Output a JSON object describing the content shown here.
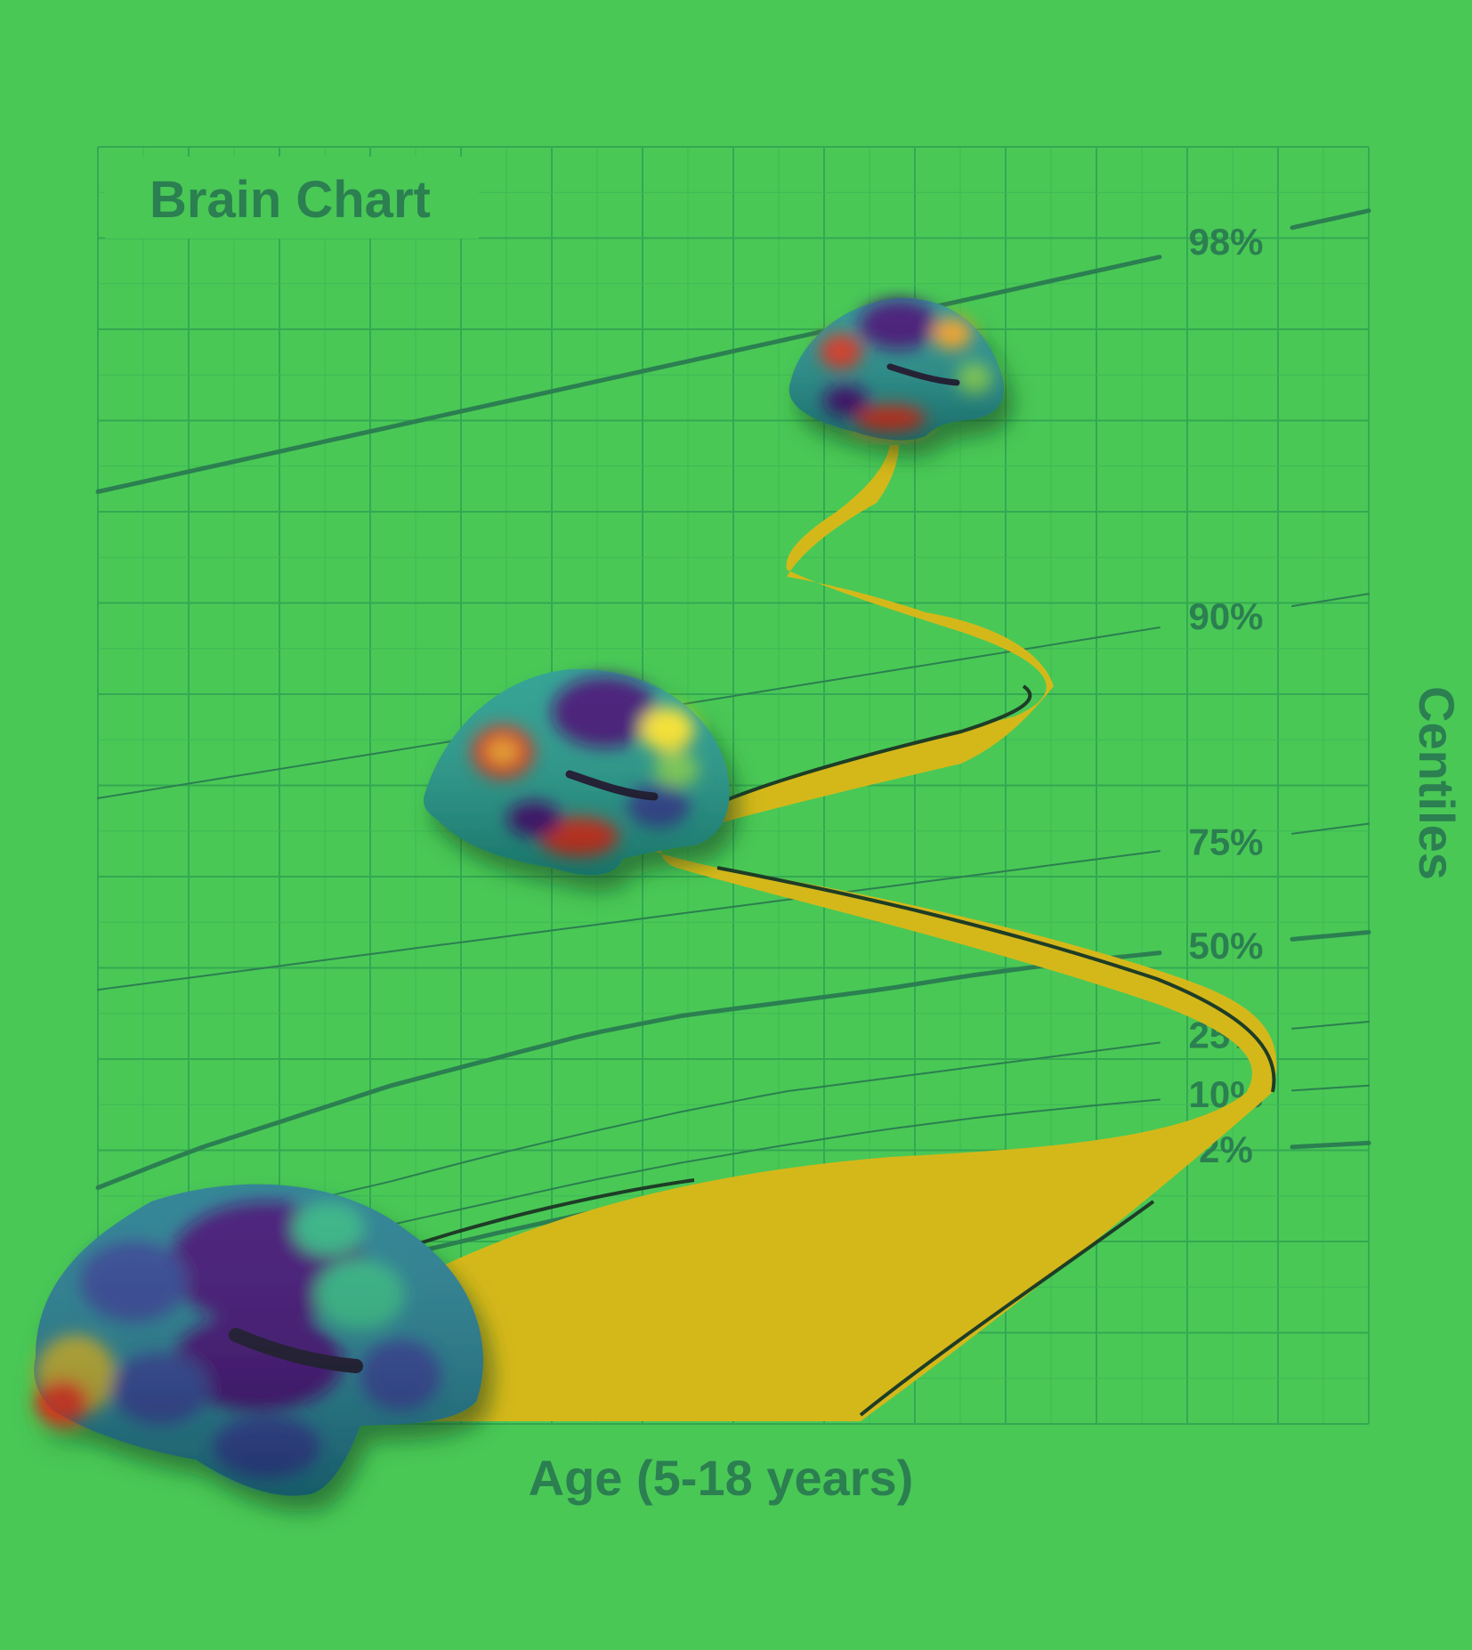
{
  "theme": {
    "background": "#49c856",
    "ink": "#2b7f50",
    "grid_major": "#34a852",
    "grid_minor": "#3fb855",
    "ribbon": "#d4b81a",
    "ribbon_edge": "#1e3d26",
    "brain_colormap": [
      "#3b0f70",
      "#2c3f8f",
      "#1f7a8c",
      "#2ab07f",
      "#7ad151",
      "#fde725",
      "#f0a020",
      "#d7301f"
    ]
  },
  "chart_data": {
    "type": "line",
    "title": "Brain Chart",
    "xlabel": "Age (5-18 years)",
    "ylabel": "Centiles",
    "xlim": [
      5,
      18
    ],
    "ylim": [
      0,
      100
    ],
    "grid": true,
    "legend": "right",
    "series": [
      {
        "name": "98%",
        "label": "98%",
        "stroke": 5,
        "x": [
          5,
          18
        ],
        "y": [
          73,
          95
        ]
      },
      {
        "name": "90%",
        "label": "90%",
        "stroke": 2,
        "x": [
          5,
          18
        ],
        "y": [
          49,
          65
        ]
      },
      {
        "name": "75%",
        "label": "75%",
        "stroke": 2,
        "x": [
          5,
          18
        ],
        "y": [
          34,
          47
        ]
      },
      {
        "name": "50%",
        "label": "50%",
        "stroke": 5,
        "x": [
          5,
          6,
          7,
          8,
          9,
          10,
          11,
          12,
          13,
          14,
          15,
          16,
          17,
          18
        ],
        "y": [
          18.5,
          21.5,
          24,
          26.5,
          28.5,
          30.5,
          32,
          33,
          34,
          35.2,
          36.2,
          37,
          37.8,
          38.5
        ]
      },
      {
        "name": "25%",
        "label": "25%",
        "stroke": 2,
        "x": [
          5,
          6,
          7,
          8,
          9,
          10,
          11,
          12,
          13,
          14,
          15,
          16,
          17,
          18
        ],
        "y": [
          12.5,
          15,
          17.2,
          19,
          21,
          22.8,
          24.5,
          26,
          27,
          28,
          29,
          30,
          30.8,
          31.5
        ]
      },
      {
        "name": "10%",
        "label": "10%",
        "stroke": 2,
        "x": [
          5,
          6,
          7,
          8,
          9,
          10,
          11,
          12,
          13,
          14,
          15,
          16,
          17,
          18
        ],
        "y": [
          10,
          12,
          13.8,
          15.6,
          17.3,
          19,
          20.5,
          21.8,
          23,
          24,
          24.8,
          25.5,
          26,
          26.5
        ]
      },
      {
        "name": "2%",
        "label": "2%",
        "stroke": 5,
        "x": [
          5,
          6,
          7,
          8,
          9,
          10,
          11,
          12,
          13,
          14,
          15,
          16,
          17,
          18
        ],
        "y": [
          6,
          8.5,
          11,
          13,
          14.8,
          16.5,
          18,
          19.2,
          20,
          20.6,
          21,
          21.3,
          21.6,
          22
        ]
      }
    ]
  }
}
